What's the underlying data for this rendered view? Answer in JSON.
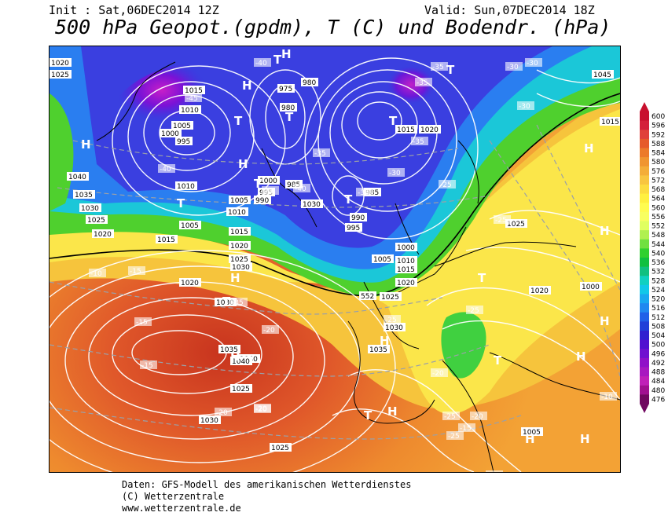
{
  "header": {
    "init": "Init : Sat,06DEC2014 12Z",
    "valid": "Valid: Sun,07DEC2014 18Z",
    "title": "500 hPa Geopot.(gpdm), T (C) und Bodendr. (hPa)"
  },
  "legend": {
    "values": [
      "600",
      "596",
      "592",
      "588",
      "584",
      "580",
      "576",
      "572",
      "568",
      "564",
      "560",
      "556",
      "552",
      "548",
      "544",
      "540",
      "536",
      "532",
      "528",
      "524",
      "520",
      "516",
      "512",
      "508",
      "504",
      "500",
      "496",
      "492",
      "488",
      "484",
      "480",
      "476"
    ],
    "colors": [
      "#c8102e",
      "#d4203a",
      "#e0403a",
      "#e65a2a",
      "#ec7a2a",
      "#f09530",
      "#f4ad38",
      "#f8c540",
      "#fcdc40",
      "#fff040",
      "#fffc50",
      "#f8ff60",
      "#e0ff60",
      "#b0f050",
      "#70e040",
      "#30d030",
      "#10c040",
      "#10c080",
      "#10d0c0",
      "#10c8e8",
      "#18a8f0",
      "#2088f0",
      "#2060e8",
      "#2040d8",
      "#3020d0",
      "#5010d0",
      "#7010d0",
      "#9010c8",
      "#a818c0",
      "#c020b8",
      "#a01090",
      "#700860"
    ]
  },
  "map": {
    "pressure_labels": [
      "1020",
      "1025",
      "1040",
      "1035",
      "1030",
      "1025",
      "1020",
      "1015",
      "1010",
      "1005",
      "1000",
      "995",
      "1010",
      "1005",
      "1015",
      "1020",
      "1025",
      "1030",
      "1035",
      "1040",
      "1030",
      "1025",
      "1030",
      "1025",
      "1020",
      "1015",
      "1010",
      "1005",
      "1000",
      "995",
      "990",
      "985",
      "980",
      "975",
      "980",
      "985",
      "990",
      "995",
      "1000",
      "1005",
      "1010",
      "1015",
      "1020",
      "1025",
      "1030",
      "1035",
      "1040",
      "1045",
      "1015",
      "1020",
      "1025",
      "1030",
      "1005",
      "1000",
      "1015",
      "1020"
    ],
    "temp_labels": [
      "-40",
      "-45",
      "-40",
      "-35",
      "-30",
      "-35",
      "-35",
      "-40",
      "-40",
      "-35",
      "-35",
      "-30",
      "-30",
      "-25",
      "-25",
      "-25",
      "-20",
      "-20",
      "-15",
      "-15",
      "-10",
      "-15",
      "-20",
      "-20",
      "-25",
      "-25",
      "-20",
      "-15",
      "-10",
      "-10",
      "-30",
      "-35",
      "-25",
      "-20"
    ],
    "highs": [
      "H",
      "H",
      "H",
      "H",
      "H",
      "H",
      "H",
      "H",
      "H",
      "H",
      "H",
      "H",
      "H",
      "H"
    ],
    "lows": [
      "T",
      "T",
      "T",
      "T",
      "T",
      "T",
      "T",
      "T",
      "T",
      "T",
      "T",
      "T",
      "T"
    ],
    "contour_552": "552"
  },
  "footer": {
    "line1": "Daten: GFS-Modell des amerikanischen Wetterdienstes",
    "line2": "(C) Wetterzentrale",
    "line3": "www.wetterzentrale.de"
  }
}
